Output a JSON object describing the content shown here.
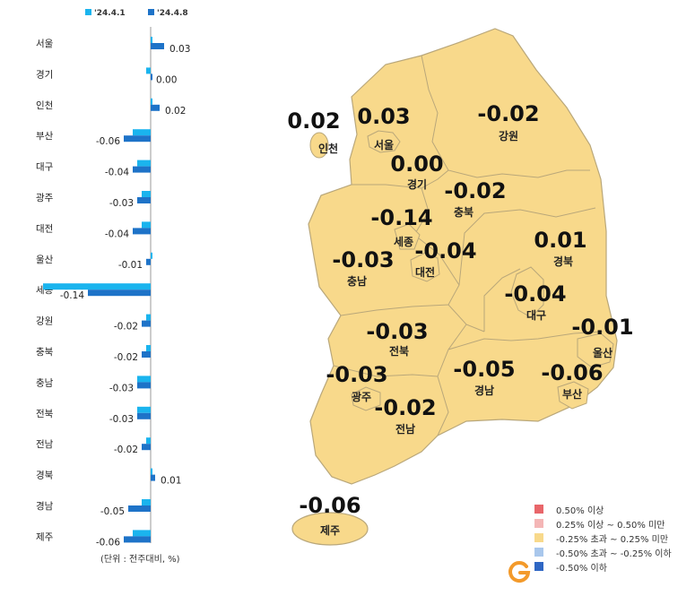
{
  "chart_data": {
    "type": "bar",
    "orientation": "horizontal",
    "categories": [
      "서울",
      "경기",
      "인천",
      "부산",
      "대구",
      "광주",
      "대전",
      "울산",
      "세종",
      "강원",
      "충북",
      "충남",
      "전북",
      "전남",
      "경북",
      "경남",
      "제주"
    ],
    "series": [
      {
        "name": "'24.4.1",
        "color": "#1ab4ee",
        "values": [
          0.0,
          -0.01,
          0.0,
          -0.04,
          -0.03,
          -0.02,
          -0.02,
          0.0,
          -0.24,
          -0.01,
          -0.01,
          -0.03,
          -0.03,
          -0.01,
          0.0,
          -0.02,
          -0.04
        ]
      },
      {
        "name": "'24.4.8",
        "color": "#1e73c8",
        "values": [
          0.03,
          0.0,
          0.02,
          -0.06,
          -0.04,
          -0.03,
          -0.04,
          -0.01,
          -0.14,
          -0.02,
          -0.02,
          -0.03,
          -0.03,
          -0.02,
          0.01,
          -0.05,
          -0.06
        ]
      }
    ],
    "value_labels": [
      "0.03",
      "0.00",
      "0.02",
      "-0.06",
      "-0.04",
      "-0.03",
      "-0.04",
      "-0.01",
      "-0.14",
      "-0.02",
      "-0.02",
      "-0.03",
      "-0.03",
      "-0.02",
      "0.01",
      "-0.05",
      "-0.06"
    ],
    "legend_position": "top"
  },
  "map": {
    "regions": [
      {
        "name": "서울",
        "value": "0.03"
      },
      {
        "name": "인천",
        "value": "0.02"
      },
      {
        "name": "경기",
        "value": "0.00"
      },
      {
        "name": "강원",
        "value": "-0.02"
      },
      {
        "name": "충북",
        "value": "-0.02"
      },
      {
        "name": "세종",
        "value": "-0.14"
      },
      {
        "name": "대전",
        "value": "-0.04"
      },
      {
        "name": "충남",
        "value": "-0.03"
      },
      {
        "name": "경북",
        "value": "0.01"
      },
      {
        "name": "대구",
        "value": "-0.04"
      },
      {
        "name": "전북",
        "value": "-0.03"
      },
      {
        "name": "울산",
        "value": "-0.01"
      },
      {
        "name": "광주",
        "value": "-0.03"
      },
      {
        "name": "경남",
        "value": "-0.05"
      },
      {
        "name": "부산",
        "value": "-0.06"
      },
      {
        "name": "전남",
        "value": "-0.02"
      },
      {
        "name": "제주",
        "value": "-0.06"
      }
    ],
    "fill_color": "#f8d98b",
    "border_color": "#b9a77a"
  },
  "legend": [
    {
      "label": "0.50% 이상",
      "color": "#e8666a"
    },
    {
      "label": "0.25% 이상 ~ 0.50% 미만",
      "color": "#f4b6b6"
    },
    {
      "label": "-0.25% 초과 ~ 0.25% 미만",
      "color": "#f8d98b"
    },
    {
      "label": "-0.50% 초과 ~ -0.25% 이하",
      "color": "#a9c7ec"
    },
    {
      "label": "-0.50% 이하",
      "color": "#2f67c4"
    }
  ],
  "unit_note": "(단위 : 전주대비, %)",
  "logo_icon": "g-logo-icon"
}
